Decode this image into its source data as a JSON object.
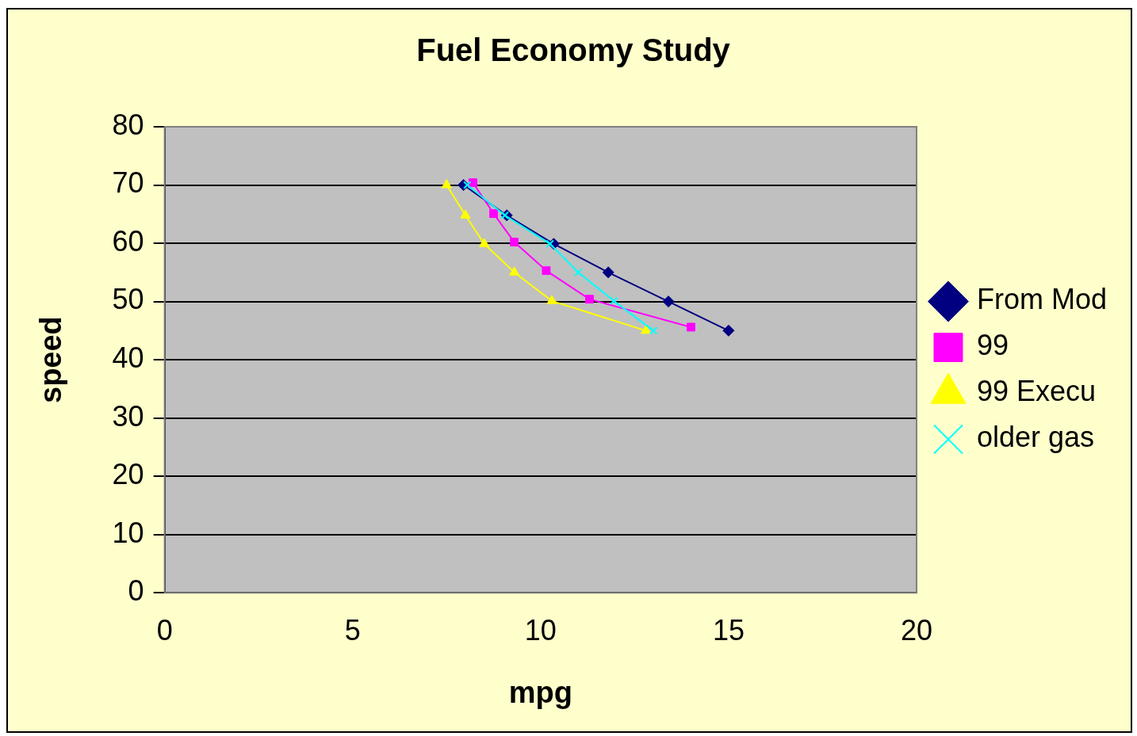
{
  "chart_data": {
    "type": "line",
    "title": "Fuel Economy Study",
    "xlabel": "mpg",
    "ylabel": "speed",
    "xlim": [
      0,
      20
    ],
    "xticks": [
      0,
      5,
      10,
      15,
      20
    ],
    "ylim": [
      0,
      80
    ],
    "yticks": [
      0,
      10,
      20,
      30,
      40,
      50,
      60,
      70,
      80
    ],
    "grid": "y",
    "legend": "right",
    "series": [
      {
        "name": "From Mod",
        "color": "#000080",
        "marker": "diamond",
        "x": [
          7.95,
          9.1,
          10.35,
          11.8,
          13.4,
          15
        ],
        "values": [
          70,
          64.8,
          59.9,
          55,
          50,
          45
        ]
      },
      {
        "name": "99",
        "color": "#ff00ff",
        "marker": "square",
        "x": [
          8.2,
          8.75,
          9.3,
          10.15,
          11.3,
          14
        ],
        "values": [
          70.4,
          65.1,
          60.2,
          55.3,
          50.4,
          45.6
        ]
      },
      {
        "name": "99 Execu",
        "color": "#ffff00",
        "marker": "triangle",
        "x": [
          7.5,
          8,
          8.5,
          9.3,
          10.3,
          12.8
        ],
        "values": [
          70,
          64.8,
          59.9,
          55,
          50.1,
          45
        ]
      },
      {
        "name": "older gas",
        "color": "#00ffff",
        "marker": "cross",
        "x": [
          8.05,
          9.05,
          10.25,
          11,
          11.95,
          13
        ],
        "values": [
          70,
          64.8,
          59.9,
          55,
          50.1,
          45
        ]
      }
    ]
  }
}
